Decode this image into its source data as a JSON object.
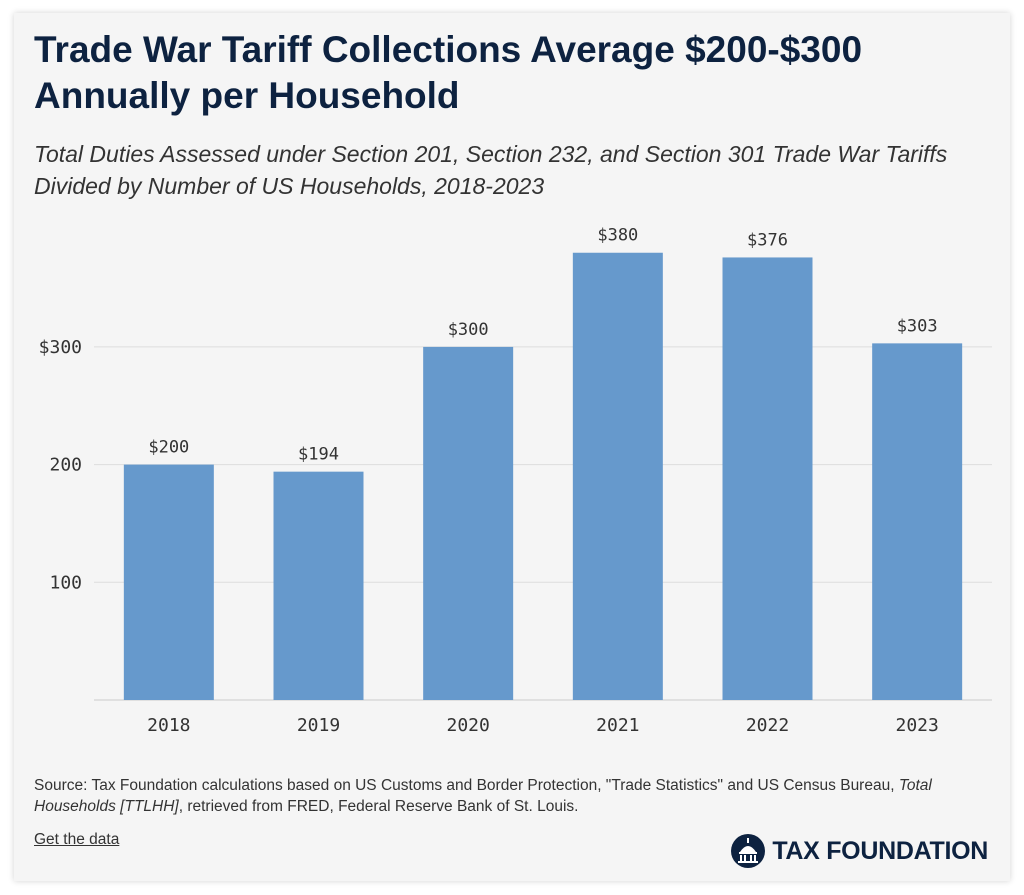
{
  "header": {
    "title": "Trade War Tariff Collections Average $200-$300 Annually per Household",
    "subtitle": "Total Duties Assessed under Section 201, Section 232, and Section 301 Trade War Tariffs Divided by Number of US Households, 2018-2023"
  },
  "chart_data": {
    "type": "bar",
    "title": "Trade War Tariff Collections Average $200-$300 Annually per Household",
    "subtitle": "Total Duties Assessed under Section 201, Section 232, and Section 301 Trade War Tariffs Divided by Number of US Households, 2018-2023",
    "categories": [
      "2018",
      "2019",
      "2020",
      "2021",
      "2022",
      "2023"
    ],
    "values": [
      200,
      194,
      300,
      380,
      376,
      303
    ],
    "data_labels": [
      "$200",
      "$194",
      "$300",
      "$380",
      "$376",
      "$303"
    ],
    "y_ticks": [
      100,
      200,
      300
    ],
    "y_tick_labels": [
      "100",
      "200",
      "$300"
    ],
    "ylim": [
      0,
      400
    ],
    "xlabel": "",
    "ylabel": "",
    "grid": true,
    "legend": "none",
    "bar_color": "#6699cc"
  },
  "footer": {
    "source_prefix": "Source: Tax Foundation calculations based on US Customs and Border Protection, \"Trade Statistics\" and US Census Bureau, ",
    "source_italic": "Total Households [TTLHH]",
    "source_suffix": ", retrieved from FRED, Federal Reserve Bank of St. Louis.",
    "get_data_label": "Get the data",
    "logo_text": "TAX FOUNDATION",
    "logo_icon": "capitol-dome-icon"
  },
  "colors": {
    "title": "#0d2240",
    "bar": "#6699cc",
    "background": "#f5f5f5",
    "grid": "#dddddd",
    "logo": "#0d2240"
  }
}
